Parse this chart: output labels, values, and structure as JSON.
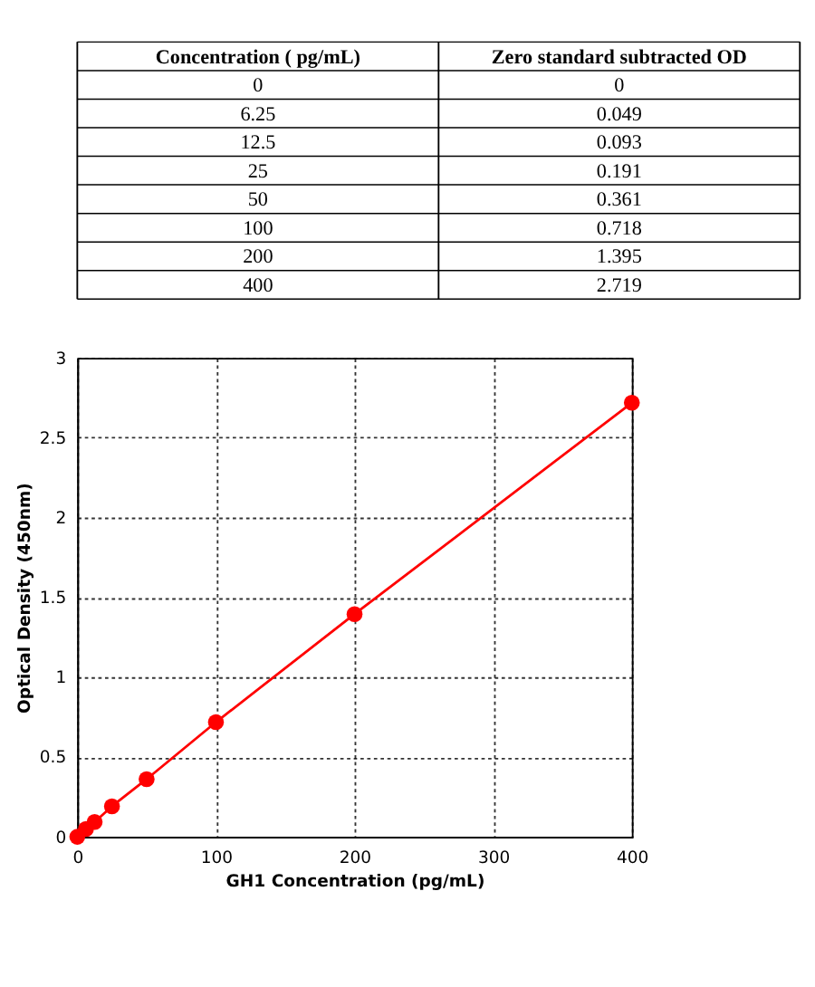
{
  "chart_data": [
    {
      "type": "other",
      "annotations": [
        "Concentration ( pg/mL)",
        "Zero standard subtracted OD",
        "0",
        "0",
        "6.25",
        "0.049",
        "12.5",
        "0.093",
        "25",
        "0.191",
        "50",
        "0.361",
        "100",
        "0.718",
        "200",
        "1.395",
        "400",
        "2.719"
      ]
    },
    {
      "type": "line",
      "xlabel": "GH1 Concentration (pg/mL)",
      "ylabel": "Optical Density (450nm)",
      "x": [
        0,
        6.25,
        12.5,
        25,
        50,
        100,
        200,
        400
      ],
      "series": [
        {
          "color": "#ff0000",
          "values": [
            0,
            0.049,
            0.093,
            0.191,
            0.361,
            0.718,
            1.395,
            2.719
          ]
        }
      ],
      "xlim": [
        0,
        400
      ],
      "xticks": [
        0,
        100,
        200,
        300,
        400
      ],
      "ylim": [
        0,
        3
      ],
      "yticks": [
        0,
        0.5,
        1,
        1.5,
        2,
        2.5,
        3
      ],
      "grid": true,
      "marker": "circle",
      "line_style": "solid"
    }
  ]
}
